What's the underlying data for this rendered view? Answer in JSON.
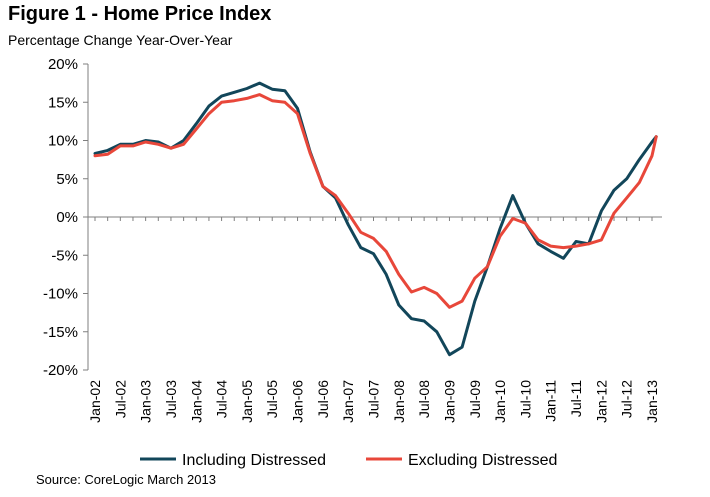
{
  "title": "Figure 1 - Home Price Index",
  "subtitle": "Percentage Change Year-Over-Year",
  "source": "Source: CoreLogic March 2013",
  "chart_data": {
    "type": "line",
    "title": "Figure 1 - Home Price Index",
    "subtitle": "Percentage Change Year-Over-Year",
    "xlabel": "",
    "ylabel": "",
    "ylim": [
      -20,
      20
    ],
    "y_ticks": [
      "20%",
      "15%",
      "10%",
      "5%",
      "0%",
      "-5%",
      "-10%",
      "-15%",
      "-20%"
    ],
    "y_tick_values": [
      20,
      15,
      10,
      5,
      0,
      -5,
      -10,
      -15,
      -20
    ],
    "x_tick_labels": [
      "Jan-02",
      "Jul-02",
      "Jan-03",
      "Jul-03",
      "Jan-04",
      "Jul-04",
      "Jan-05",
      "Jul-05",
      "Jan-06",
      "Jul-06",
      "Jan-07",
      "Jul-07",
      "Jan-08",
      "Jul-08",
      "Jan-09",
      "Jul-09",
      "Jan-10",
      "Jul-10",
      "Jan-11",
      "Jul-11",
      "Jan-12",
      "Jul-12",
      "Jan-13"
    ],
    "grid": false,
    "legend_position": "bottom",
    "series": [
      {
        "name": "Including Distressed",
        "color": "#12465a",
        "x": [
          "Jan-02",
          "Apr-02",
          "Jul-02",
          "Oct-02",
          "Jan-03",
          "Apr-03",
          "Jul-03",
          "Oct-03",
          "Jan-04",
          "Apr-04",
          "Jul-04",
          "Oct-04",
          "Jan-05",
          "Apr-05",
          "Jul-05",
          "Oct-05",
          "Jan-06",
          "Apr-06",
          "Jul-06",
          "Oct-06",
          "Jan-07",
          "Apr-07",
          "Jul-07",
          "Oct-07",
          "Jan-08",
          "Apr-08",
          "Jul-08",
          "Oct-08",
          "Jan-09",
          "Apr-09",
          "Jul-09",
          "Oct-09",
          "Jan-10",
          "Apr-10",
          "Jul-10",
          "Oct-10",
          "Jan-11",
          "Apr-11",
          "Jul-11",
          "Oct-11",
          "Jan-12",
          "Apr-12",
          "Jul-12",
          "Oct-12",
          "Jan-13",
          "Feb-13"
        ],
        "values": [
          8.3,
          8.7,
          9.5,
          9.5,
          10.0,
          9.8,
          9.0,
          10.0,
          12.2,
          14.5,
          15.8,
          16.3,
          16.8,
          17.5,
          16.7,
          16.5,
          14.2,
          8.5,
          4.0,
          2.5,
          -1.0,
          -4.0,
          -4.8,
          -7.5,
          -11.5,
          -13.3,
          -13.6,
          -15.0,
          -18.0,
          -17.0,
          -11.0,
          -6.5,
          -1.5,
          2.8,
          -0.8,
          -3.5,
          -4.5,
          -5.4,
          -3.2,
          -3.5,
          0.8,
          3.5,
          5.0,
          7.5,
          9.8,
          10.5
        ]
      },
      {
        "name": "Excluding Distressed",
        "color": "#e8473a",
        "x": [
          "Jan-02",
          "Apr-02",
          "Jul-02",
          "Oct-02",
          "Jan-03",
          "Apr-03",
          "Jul-03",
          "Oct-03",
          "Jan-04",
          "Apr-04",
          "Jul-04",
          "Oct-04",
          "Jan-05",
          "Apr-05",
          "Jul-05",
          "Oct-05",
          "Jan-06",
          "Apr-06",
          "Jul-06",
          "Oct-06",
          "Jan-07",
          "Apr-07",
          "Jul-07",
          "Oct-07",
          "Jan-08",
          "Apr-08",
          "Jul-08",
          "Oct-08",
          "Jan-09",
          "Apr-09",
          "Jul-09",
          "Oct-09",
          "Jan-10",
          "Apr-10",
          "Jul-10",
          "Oct-10",
          "Jan-11",
          "Apr-11",
          "Jul-11",
          "Oct-11",
          "Jan-12",
          "Apr-12",
          "Jul-12",
          "Oct-12",
          "Jan-13",
          "Feb-13"
        ],
        "values": [
          8.0,
          8.2,
          9.3,
          9.3,
          9.8,
          9.5,
          9.0,
          9.5,
          11.5,
          13.5,
          15.0,
          15.2,
          15.5,
          16.0,
          15.2,
          15.0,
          13.5,
          8.3,
          4.0,
          2.8,
          0.5,
          -2.0,
          -2.8,
          -4.5,
          -7.5,
          -9.8,
          -9.2,
          -10.0,
          -11.8,
          -11.0,
          -8.0,
          -6.5,
          -2.5,
          -0.2,
          -0.8,
          -3.0,
          -3.8,
          -4.0,
          -3.8,
          -3.5,
          -3.0,
          0.5,
          2.5,
          4.5,
          8.0,
          10.5
        ]
      }
    ]
  }
}
